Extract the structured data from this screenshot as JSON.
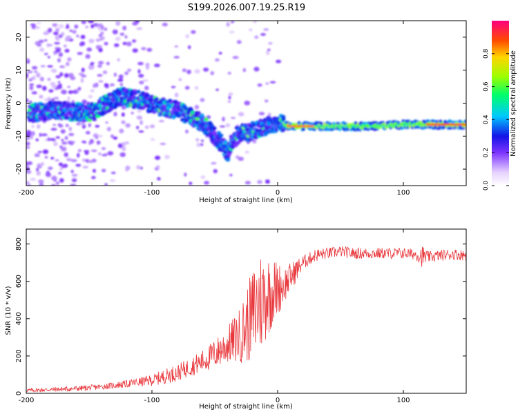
{
  "title": "S199.2026.007.19.25.R19",
  "chart_data": [
    {
      "type": "heatmap",
      "title": "",
      "xlabel": "Height of straight line (km)",
      "ylabel": "Frequency (Hz)",
      "xlim": [
        -200,
        150
      ],
      "ylim": [
        -25,
        25
      ],
      "xticks": [
        -200,
        -100,
        0,
        100
      ],
      "yticks": [
        -20,
        -10,
        0,
        10,
        20
      ],
      "colorbar": {
        "label": "Normalized spectral amplitude",
        "range": [
          0,
          1
        ],
        "ticks": [
          0.0,
          0.2,
          0.4,
          0.6,
          0.8
        ]
      },
      "ridge": {
        "x": [
          -195,
          -180,
          -165,
          -150,
          -140,
          -125,
          -110,
          -95,
          -80,
          -70,
          -60,
          -50,
          -45,
          -40,
          -35,
          -30,
          -25,
          -20,
          -15,
          -10,
          -5,
          0,
          10,
          20,
          40,
          60,
          80,
          100,
          115,
          120,
          140,
          150
        ],
        "y": [
          -3,
          -2,
          -2.5,
          -3,
          -1,
          2,
          1,
          -1,
          -2,
          -4,
          -6,
          -10,
          -12,
          -15,
          -11,
          -9,
          -9,
          -8.5,
          -8,
          -7,
          -6.5,
          -6,
          -7,
          -7,
          -7,
          -7,
          -7,
          -6.5,
          -6.5,
          -6.5,
          -6.5,
          -6.5
        ]
      }
    },
    {
      "type": "line",
      "title": "",
      "xlabel": "Height of straight line (km)",
      "ylabel": "SNR (10 * v/v)",
      "xlim": [
        -200,
        150
      ],
      "ylim": [
        0,
        880
      ],
      "xticks": [
        -200,
        -100,
        0,
        100
      ],
      "yticks": [
        0,
        200,
        400,
        600,
        800
      ],
      "color": "#e8383d",
      "series": [
        {
          "name": "SNR",
          "x": [
            -200,
            -180,
            -160,
            -140,
            -120,
            -100,
            -90,
            -80,
            -70,
            -60,
            -50,
            -40,
            -30,
            -25,
            -20,
            -15,
            -10,
            -5,
            0,
            5,
            10,
            15,
            20,
            25,
            30,
            40,
            50,
            60,
            80,
            100,
            110,
            115,
            120,
            130,
            140,
            150
          ],
          "values": [
            15,
            20,
            25,
            35,
            50,
            70,
            90,
            110,
            140,
            170,
            210,
            260,
            310,
            360,
            420,
            480,
            520,
            540,
            560,
            580,
            620,
            660,
            700,
            720,
            740,
            750,
            760,
            750,
            750,
            750,
            745,
            735,
            730,
            740,
            745,
            740
          ],
          "spread": [
            10,
            12,
            15,
            15,
            20,
            30,
            40,
            45,
            50,
            60,
            80,
            100,
            150,
            200,
            250,
            300,
            250,
            200,
            150,
            100,
            80,
            60,
            40,
            35,
            35,
            30,
            30,
            30,
            30,
            30,
            30,
            60,
            30,
            30,
            30,
            30
          ]
        }
      ]
    }
  ]
}
